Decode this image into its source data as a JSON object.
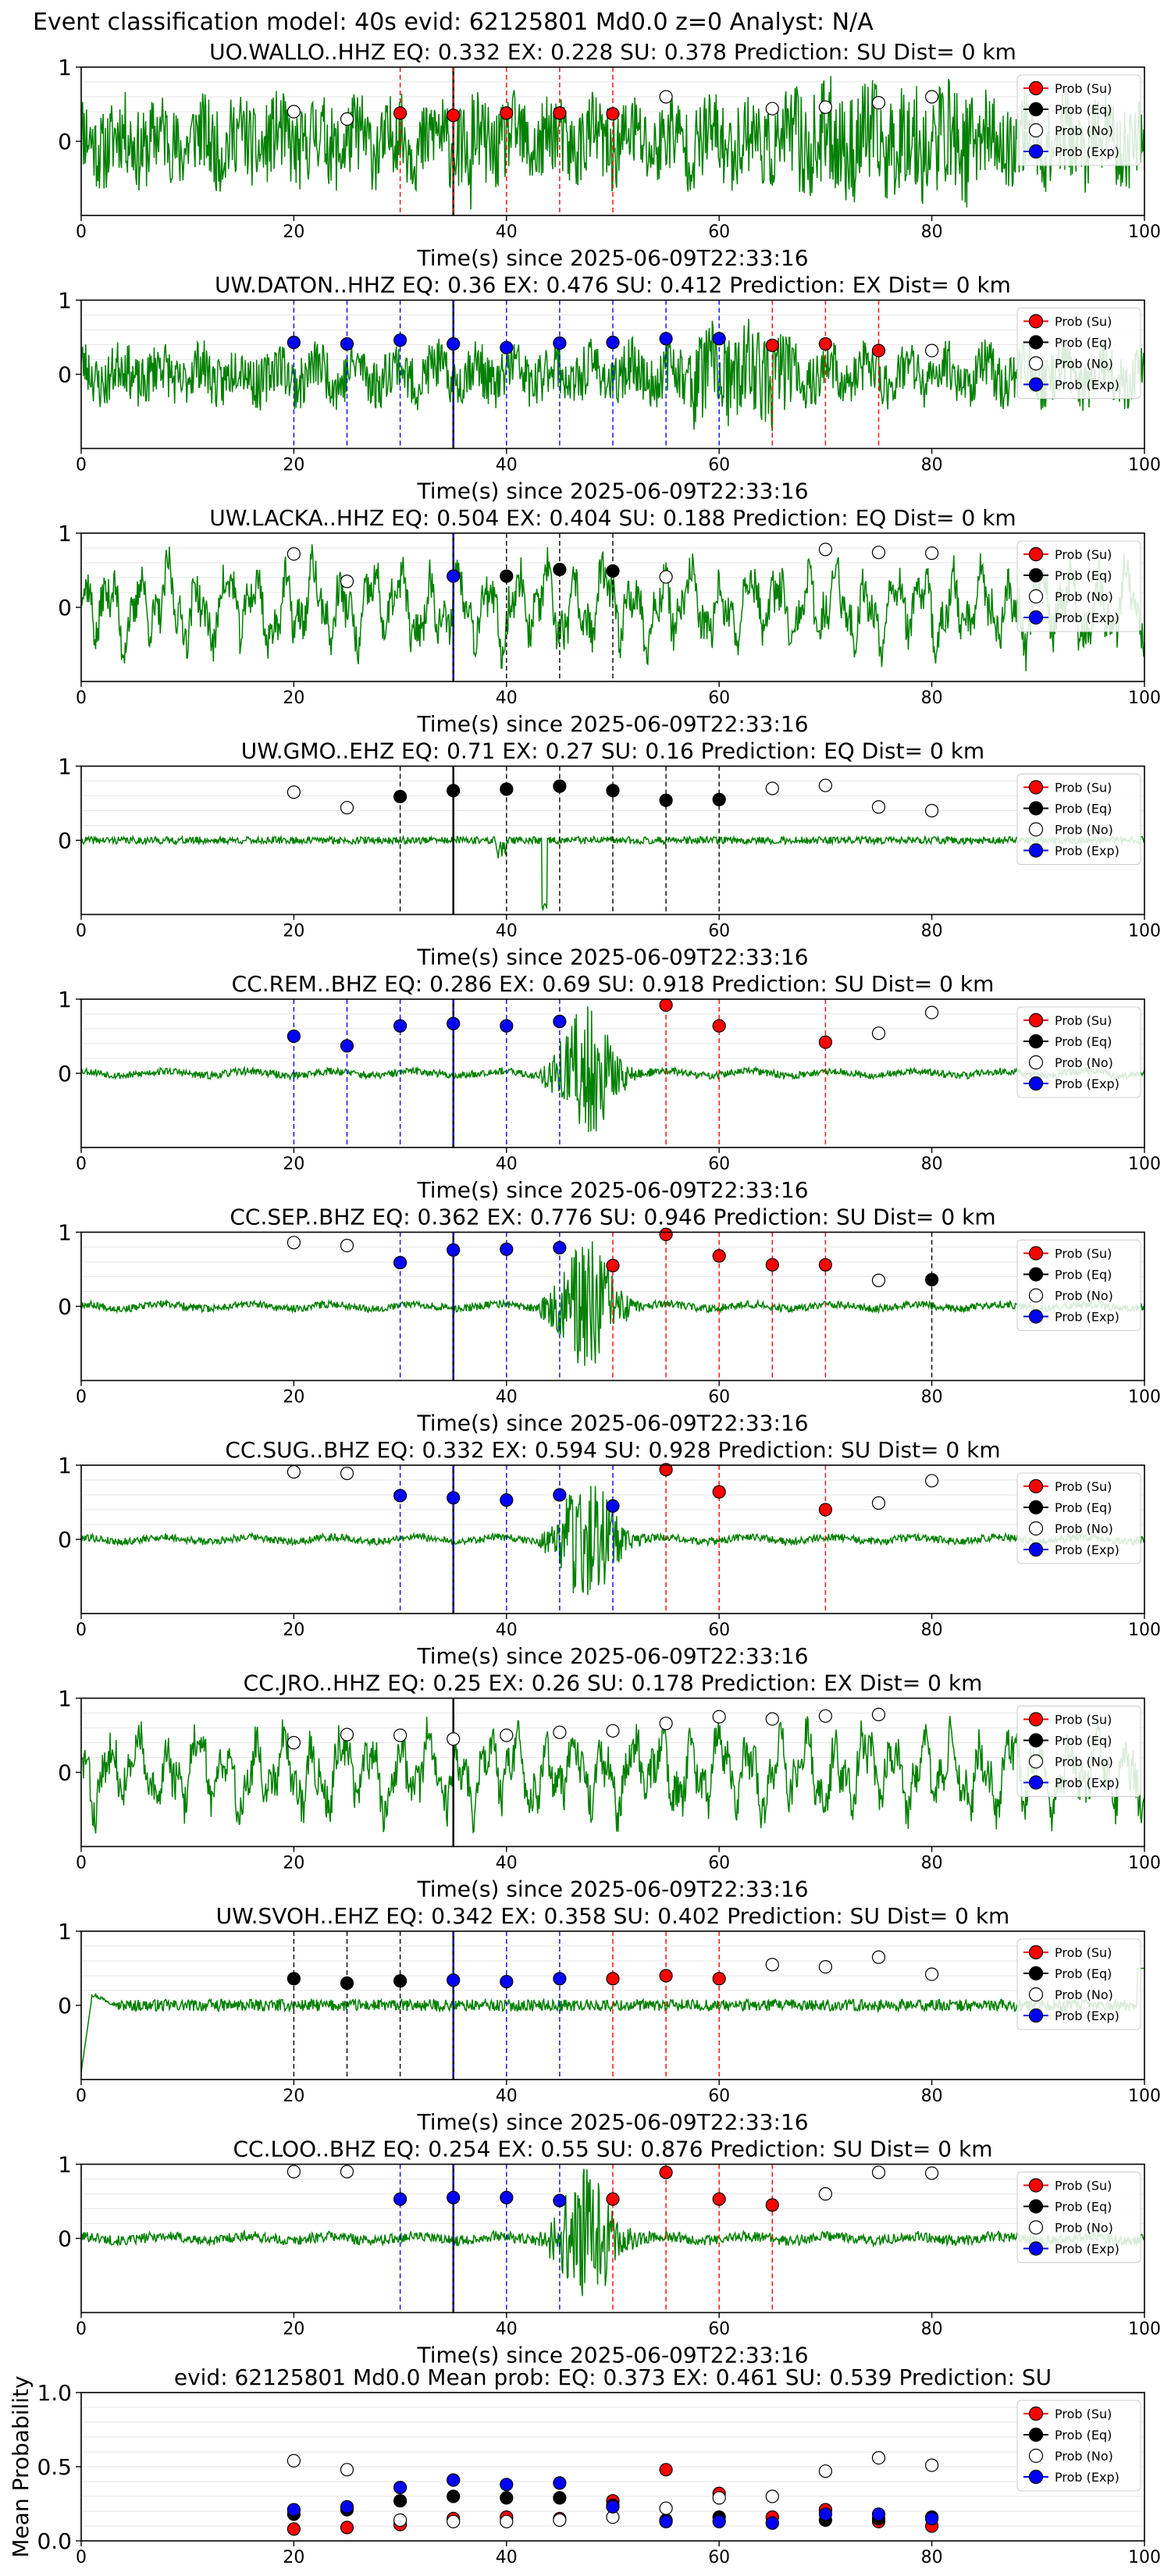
{
  "figure_title": "Event classification model: 40s evid: 62125801 Md0.0 z=0 Analyst: N/A",
  "legend_labels": [
    "Prob (Su)",
    "Prob (Eq)",
    "Prob (No)",
    "Prob (Exp)"
  ],
  "colors": {
    "su": "#ff0000",
    "eq": "#000000",
    "no": "#ffffff",
    "exp": "#0000ff",
    "waveform": "#008000",
    "marker_edge": "#000000",
    "axes": "#000000",
    "grid": "#e6e6e6",
    "pick_line": "#000000"
  },
  "chart_data": [
    {
      "type": "scatter",
      "title": "UO.WALLO..HHZ   EQ: 0.332  EX: 0.228  SU: 0.378   Prediction: SU    Dist= 0 km",
      "xlabel": "Time(s) since 2025-06-09T22:33:16",
      "ylabel": "",
      "xlim": [
        0,
        100
      ],
      "ylim": [
        -1,
        1
      ],
      "x_ticks": [
        0,
        20,
        40,
        60,
        80,
        100
      ],
      "y_ticks": [
        0,
        1
      ],
      "grid": true,
      "legend_position": "top-right",
      "pick_time": 35,
      "waveform": {
        "amplitude": 0.55,
        "envelope": "noisy",
        "seed": 11
      },
      "x": [
        20,
        25,
        30,
        35,
        40,
        45,
        50,
        55,
        65,
        70,
        75,
        80
      ],
      "class": [
        "No",
        "No",
        "Su",
        "Su",
        "Su",
        "Su",
        "Su",
        "No",
        "No",
        "No",
        "No",
        "No"
      ],
      "y": [
        0.4,
        0.3,
        0.38,
        0.35,
        0.38,
        0.38,
        0.37,
        0.6,
        0.44,
        0.46,
        0.52,
        0.6
      ]
    },
    {
      "type": "scatter",
      "title": "UW.DATON..HHZ   EQ: 0.36  EX: 0.476  SU: 0.412   Prediction: EX    Dist= 0 km",
      "xlabel": "Time(s) since 2025-06-09T22:33:16",
      "ylabel": "",
      "xlim": [
        0,
        100
      ],
      "ylim": [
        -1,
        1
      ],
      "x_ticks": [
        0,
        20,
        40,
        60,
        80,
        100
      ],
      "y_ticks": [
        0,
        1
      ],
      "grid": true,
      "legend_position": "top-right",
      "pick_time": 35,
      "waveform": {
        "amplitude": 0.35,
        "envelope": "noisy-burst",
        "seed": 23
      },
      "x": [
        20,
        25,
        30,
        35,
        40,
        45,
        50,
        55,
        60,
        65,
        70,
        75,
        80
      ],
      "class": [
        "Exp",
        "Exp",
        "Exp",
        "Exp",
        "Exp",
        "Exp",
        "Exp",
        "Exp",
        "Exp",
        "Su",
        "Su",
        "Su",
        "No"
      ],
      "y": [
        0.43,
        0.41,
        0.46,
        0.41,
        0.36,
        0.42,
        0.43,
        0.48,
        0.48,
        0.39,
        0.41,
        0.32,
        0.32
      ]
    },
    {
      "type": "scatter",
      "title": "UW.LACKA..HHZ   EQ: 0.504  EX: 0.404  SU: 0.188   Prediction: EQ    Dist= 0 km",
      "xlabel": "Time(s) since 2025-06-09T22:33:16",
      "ylabel": "",
      "xlim": [
        0,
        100
      ],
      "ylim": [
        -1,
        1
      ],
      "x_ticks": [
        0,
        20,
        40,
        60,
        80,
        100
      ],
      "y_ticks": [
        0,
        1
      ],
      "grid": true,
      "legend_position": "top-right",
      "pick_time": 35,
      "waveform": {
        "amplitude": 0.6,
        "envelope": "wavy",
        "seed": 37
      },
      "x": [
        20,
        25,
        35,
        40,
        45,
        50,
        55,
        70,
        75,
        80
      ],
      "class": [
        "No",
        "No",
        "Exp",
        "Eq",
        "Eq",
        "Eq",
        "No",
        "No",
        "No",
        "No"
      ],
      "y": [
        0.72,
        0.35,
        0.42,
        0.42,
        0.51,
        0.49,
        0.41,
        0.78,
        0.74,
        0.73
      ]
    },
    {
      "type": "scatter",
      "title": "UW.GMO..EHZ   EQ: 0.71  EX: 0.27  SU: 0.16   Prediction: EQ    Dist= 0 km",
      "xlabel": "Time(s) since 2025-06-09T22:33:16",
      "ylabel": "",
      "xlim": [
        0,
        100
      ],
      "ylim": [
        -1,
        1
      ],
      "x_ticks": [
        0,
        20,
        40,
        60,
        80,
        100
      ],
      "y_ticks": [
        0,
        1
      ],
      "grid": true,
      "legend_position": "top-right",
      "pick_time": 35,
      "waveform": {
        "amplitude": 0.05,
        "envelope": "quiet-spike",
        "seed": 41
      },
      "x": [
        20,
        25,
        30,
        35,
        40,
        45,
        50,
        55,
        60,
        65,
        70,
        75,
        80
      ],
      "class": [
        "No",
        "No",
        "Eq",
        "Eq",
        "Eq",
        "Eq",
        "Eq",
        "Eq",
        "Eq",
        "No",
        "No",
        "No",
        "No"
      ],
      "y": [
        0.65,
        0.44,
        0.59,
        0.67,
        0.69,
        0.73,
        0.67,
        0.54,
        0.55,
        0.7,
        0.74,
        0.45,
        0.4
      ]
    },
    {
      "type": "scatter",
      "title": "CC.REM..BHZ   EQ: 0.286  EX: 0.69  SU: 0.918   Prediction: SU    Dist= 0 km",
      "xlabel": "Time(s) since 2025-06-09T22:33:16",
      "ylabel": "",
      "xlim": [
        0,
        100
      ],
      "ylim": [
        -1,
        1
      ],
      "x_ticks": [
        0,
        20,
        40,
        60,
        80,
        100
      ],
      "y_ticks": [
        0,
        1
      ],
      "grid": true,
      "legend_position": "top-right",
      "pick_time": 35,
      "waveform": {
        "amplitude": 0.05,
        "envelope": "burst",
        "seed": 53
      },
      "x": [
        20,
        25,
        30,
        35,
        40,
        45,
        55,
        60,
        70,
        75,
        80
      ],
      "class": [
        "Exp",
        "Exp",
        "Exp",
        "Exp",
        "Exp",
        "Exp",
        "Su",
        "Su",
        "Su",
        "No",
        "No"
      ],
      "y": [
        0.5,
        0.37,
        0.64,
        0.67,
        0.64,
        0.7,
        0.92,
        0.64,
        0.42,
        0.54,
        0.82
      ]
    },
    {
      "type": "scatter",
      "title": "CC.SEP..BHZ   EQ: 0.362  EX: 0.776  SU: 0.946   Prediction: SU    Dist= 0 km",
      "xlabel": "Time(s) since 2025-06-09T22:33:16",
      "ylabel": "",
      "xlim": [
        0,
        100
      ],
      "ylim": [
        -1,
        1
      ],
      "x_ticks": [
        0,
        20,
        40,
        60,
        80,
        100
      ],
      "y_ticks": [
        0,
        1
      ],
      "grid": true,
      "legend_position": "top-right",
      "pick_time": 35,
      "waveform": {
        "amplitude": 0.05,
        "envelope": "burst",
        "seed": 67
      },
      "x": [
        20,
        25,
        30,
        35,
        40,
        45,
        50,
        55,
        60,
        65,
        70,
        75,
        80
      ],
      "class": [
        "No",
        "No",
        "Exp",
        "Exp",
        "Exp",
        "Exp",
        "Su",
        "Su",
        "Su",
        "Su",
        "Su",
        "No",
        "Eq"
      ],
      "y": [
        0.86,
        0.82,
        0.59,
        0.76,
        0.77,
        0.79,
        0.55,
        0.97,
        0.68,
        0.56,
        0.56,
        0.35,
        0.36
      ]
    },
    {
      "type": "scatter",
      "title": "CC.SUG..BHZ   EQ: 0.332  EX: 0.594  SU: 0.928   Prediction: SU    Dist= 0 km",
      "xlabel": "Time(s) since 2025-06-09T22:33:16",
      "ylabel": "",
      "xlim": [
        0,
        100
      ],
      "ylim": [
        -1,
        1
      ],
      "x_ticks": [
        0,
        20,
        40,
        60,
        80,
        100
      ],
      "y_ticks": [
        0,
        1
      ],
      "grid": true,
      "legend_position": "top-right",
      "pick_time": 35,
      "waveform": {
        "amplitude": 0.05,
        "envelope": "burst",
        "seed": 79
      },
      "x": [
        20,
        25,
        30,
        35,
        40,
        45,
        50,
        55,
        60,
        70,
        75,
        80
      ],
      "class": [
        "No",
        "No",
        "Exp",
        "Exp",
        "Exp",
        "Exp",
        "Exp",
        "Su",
        "Su",
        "Su",
        "No",
        "No"
      ],
      "y": [
        0.91,
        0.89,
        0.59,
        0.56,
        0.53,
        0.6,
        0.45,
        0.94,
        0.64,
        0.4,
        0.49,
        0.79
      ]
    },
    {
      "type": "scatter",
      "title": "CC.JRO..HHZ   EQ: 0.25  EX: 0.26  SU: 0.178   Prediction: EX    Dist= 0 km",
      "xlabel": "Time(s) since 2025-06-09T22:33:16",
      "ylabel": "",
      "xlim": [
        0,
        100
      ],
      "ylim": [
        -1,
        1
      ],
      "x_ticks": [
        0,
        20,
        40,
        60,
        80,
        100
      ],
      "y_ticks": [
        0,
        1
      ],
      "grid": true,
      "legend_position": "top-right",
      "pick_time": 35,
      "waveform": {
        "amplitude": 0.6,
        "envelope": "wavy",
        "seed": 83
      },
      "x": [
        20,
        25,
        30,
        35,
        40,
        45,
        50,
        55,
        60,
        65,
        70,
        75
      ],
      "class": [
        "No",
        "No",
        "No",
        "No",
        "No",
        "No",
        "No",
        "No",
        "No",
        "No",
        "No",
        "No"
      ],
      "y": [
        0.4,
        0.51,
        0.5,
        0.45,
        0.5,
        0.54,
        0.56,
        0.66,
        0.75,
        0.72,
        0.76,
        0.78
      ]
    },
    {
      "type": "scatter",
      "title": "UW.SVOH..EHZ   EQ: 0.342  EX: 0.358  SU: 0.402   Prediction: SU    Dist= 0 km",
      "xlabel": "Time(s) since 2025-06-09T22:33:16",
      "ylabel": "",
      "xlim": [
        0,
        100
      ],
      "ylim": [
        -1,
        1
      ],
      "x_ticks": [
        0,
        20,
        40,
        60,
        80,
        100
      ],
      "y_ticks": [
        0,
        1
      ],
      "grid": true,
      "legend_position": "top-right",
      "pick_time": 35,
      "waveform": {
        "amplitude": 0.08,
        "envelope": "step-start",
        "seed": 97
      },
      "x": [
        20,
        25,
        30,
        35,
        40,
        45,
        50,
        55,
        60,
        65,
        70,
        75,
        80
      ],
      "class": [
        "Eq",
        "Eq",
        "Eq",
        "Exp",
        "Exp",
        "Exp",
        "Su",
        "Su",
        "Su",
        "No",
        "No",
        "No",
        "No"
      ],
      "y": [
        0.36,
        0.3,
        0.33,
        0.34,
        0.32,
        0.36,
        0.36,
        0.4,
        0.36,
        0.55,
        0.52,
        0.65,
        0.42
      ]
    },
    {
      "type": "scatter",
      "title": "CC.LOO..BHZ   EQ: 0.254  EX: 0.55  SU: 0.876   Prediction: SU    Dist= 0 km",
      "xlabel": "Time(s) since 2025-06-09T22:33:16",
      "ylabel": "",
      "xlim": [
        0,
        100
      ],
      "ylim": [
        -1,
        1
      ],
      "x_ticks": [
        0,
        20,
        40,
        60,
        80,
        100
      ],
      "y_ticks": [
        0,
        1
      ],
      "grid": true,
      "legend_position": "top-right",
      "pick_time": 35,
      "waveform": {
        "amplitude": 0.07,
        "envelope": "burst",
        "seed": 101
      },
      "x": [
        20,
        25,
        30,
        35,
        40,
        45,
        50,
        55,
        60,
        65,
        70,
        75,
        80
      ],
      "class": [
        "No",
        "No",
        "Exp",
        "Exp",
        "Exp",
        "Exp",
        "Su",
        "Su",
        "Su",
        "Su",
        "No",
        "No",
        "No"
      ],
      "y": [
        0.9,
        0.9,
        0.53,
        0.55,
        0.55,
        0.51,
        0.53,
        0.89,
        0.53,
        0.45,
        0.6,
        0.89,
        0.88
      ]
    },
    {
      "type": "scatter",
      "title": "evid: 62125801  Md0.0   Mean prob:   EQ: 0.373  EX: 0.461  SU: 0.539   Prediction: SU",
      "xlabel": "",
      "ylabel": "Mean Probability",
      "xlim": [
        0,
        100
      ],
      "ylim": [
        0,
        1
      ],
      "x_ticks": [
        0,
        20,
        40,
        60,
        80,
        100
      ],
      "y_ticks": [
        0.0,
        0.5,
        1.0
      ],
      "y_tick_labels": [
        "0.0",
        "0.5",
        "1.0"
      ],
      "grid": true,
      "legend_position": "top-right",
      "x": [
        20,
        25,
        30,
        35,
        40,
        45,
        50,
        55,
        60,
        65,
        70,
        75,
        80
      ],
      "series": [
        {
          "name": "Prob (Su)",
          "values": [
            0.08,
            0.09,
            0.11,
            0.15,
            0.16,
            0.15,
            0.27,
            0.48,
            0.32,
            0.16,
            0.21,
            0.13,
            0.1
          ]
        },
        {
          "name": "Prob (Eq)",
          "values": [
            0.18,
            0.21,
            0.27,
            0.3,
            0.29,
            0.29,
            0.24,
            0.14,
            0.16,
            0.12,
            0.14,
            0.15,
            0.16
          ]
        },
        {
          "name": "Prob (No)",
          "values": [
            0.54,
            0.48,
            0.14,
            0.13,
            0.13,
            0.14,
            0.16,
            0.22,
            0.29,
            0.3,
            0.47,
            0.56,
            0.51
          ]
        },
        {
          "name": "Prob (Exp)",
          "values": [
            0.21,
            0.23,
            0.36,
            0.41,
            0.38,
            0.39,
            0.23,
            0.13,
            0.13,
            0.12,
            0.18,
            0.18,
            0.15
          ]
        }
      ]
    }
  ]
}
